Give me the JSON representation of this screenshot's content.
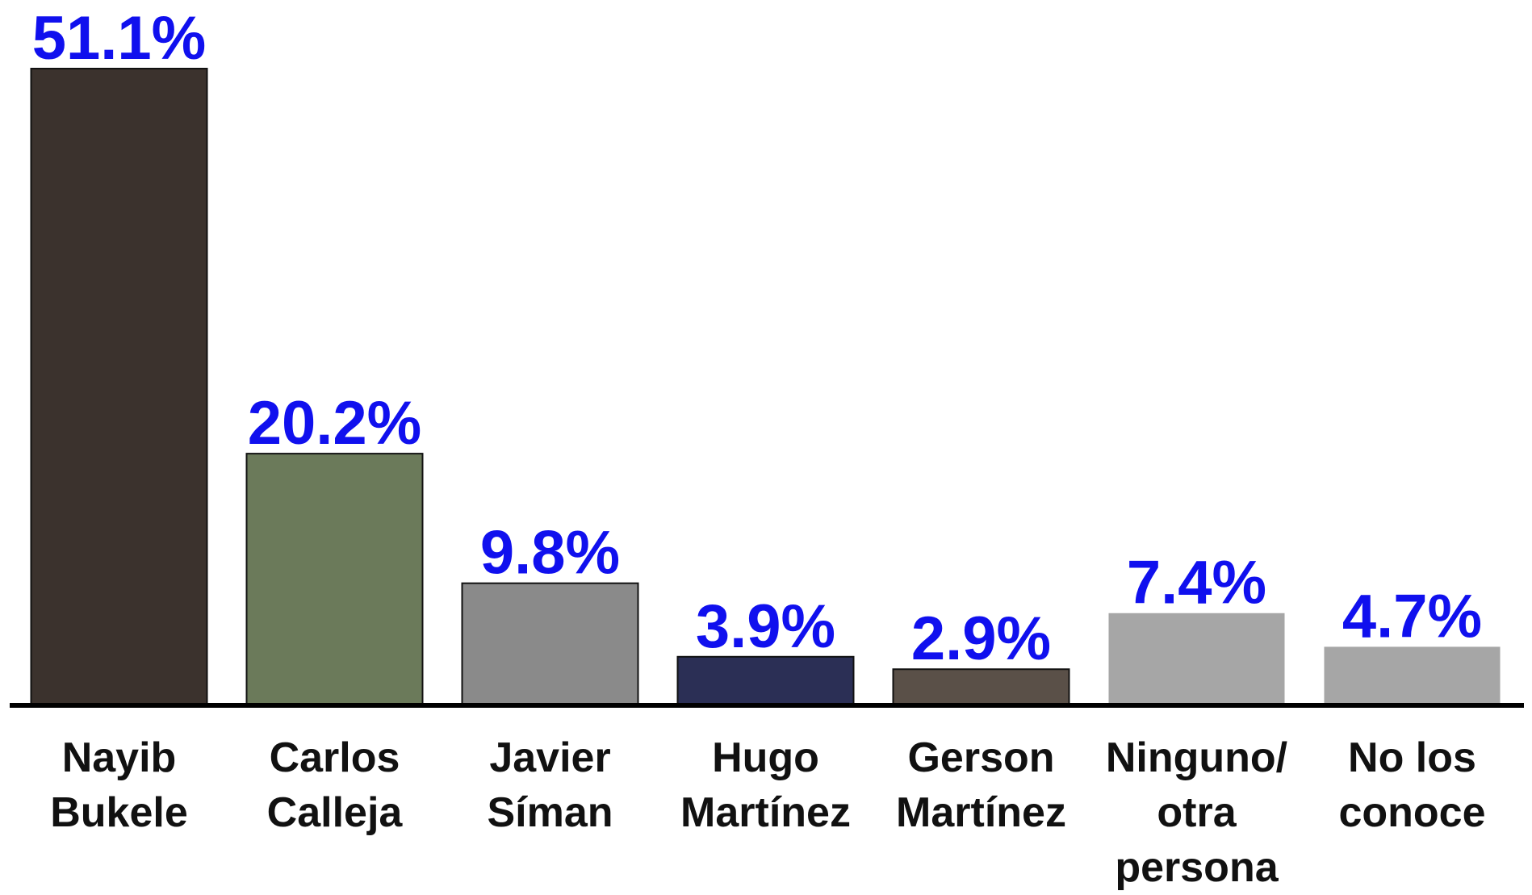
{
  "chart_data": {
    "type": "bar",
    "categories": [
      "Nayib\nBukele",
      "Carlos\nCalleja",
      "Javier\nSíman",
      "Hugo\nMartínez",
      "Gerson\nMartínez",
      "Ninguno/\notra\npersona",
      "No los\nconoce"
    ],
    "values": [
      51.1,
      20.2,
      9.8,
      3.9,
      2.9,
      7.4,
      4.7
    ],
    "value_labels": [
      "51.1%",
      "20.2%",
      "9.8%",
      "3.9%",
      "2.9%",
      "7.4%",
      "4.7%"
    ],
    "colors": [
      "#3b322d",
      "#6b7a5a",
      "#8a8a8a",
      "#2b2f55",
      "#5a5048",
      "#a6a6a6",
      "#a6a6a6"
    ],
    "label_color": "#1010ee"
  }
}
